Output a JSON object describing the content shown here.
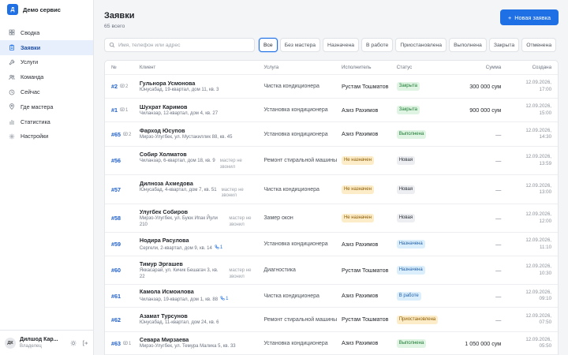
{
  "app": {
    "logo_letter": "Д",
    "name": "Демо сервис"
  },
  "nav": [
    {
      "label": "Сводка",
      "icon": "grid-icon"
    },
    {
      "label": "Заявки",
      "icon": "clipboard-icon",
      "active": true
    },
    {
      "label": "Услуги",
      "icon": "wrench-icon"
    },
    {
      "label": "Команда",
      "icon": "users-icon"
    },
    {
      "label": "Сейчас",
      "icon": "clock-icon"
    },
    {
      "label": "Где мастера",
      "icon": "pin-icon"
    },
    {
      "label": "Статистика",
      "icon": "chart-icon"
    },
    {
      "label": "Настройки",
      "icon": "gear-icon"
    }
  ],
  "user": {
    "initials": "ДК",
    "name": "Дилшод Кар...",
    "role": "Владелец"
  },
  "page": {
    "title": "Заявки",
    "subtitle": "65 всего",
    "new_button": "Новая заявка"
  },
  "search": {
    "placeholder": "Имя, телефон или адрес",
    "value": ""
  },
  "filters": [
    {
      "label": "Все",
      "active": true
    },
    {
      "label": "Без мастера"
    },
    {
      "label": "Назначена"
    },
    {
      "label": "В работе"
    },
    {
      "label": "Приостановлена"
    },
    {
      "label": "Выполнена"
    },
    {
      "label": "Закрыта"
    },
    {
      "label": "Отменена"
    }
  ],
  "columns": {
    "num": "№",
    "client": "Клиент",
    "service": "Услуга",
    "executor": "Исполнитель",
    "status": "Статус",
    "sum": "Сумма",
    "created": "Создана"
  },
  "rows": [
    {
      "num": "#2",
      "extra": "2",
      "extra_icon": "comment-icon",
      "client": "Гульнора Усмонова",
      "address": "Юнусабад, 19-квартал, дом 11, кв. 3",
      "nomaster": "",
      "calls": "",
      "service": "Чистка кондиционера",
      "executor": "Рустам Тошматов",
      "status": "Закрыта",
      "status_kind": "closed",
      "sum": "300 000 сум",
      "date": "12.09.2026,",
      "time": "17:00"
    },
    {
      "num": "#1",
      "extra": "1",
      "extra_icon": "comment-icon",
      "client": "Шухрат Каримов",
      "address": "Чиланзар, 12-квартал, дом 4, кв. 27",
      "nomaster": "",
      "calls": "",
      "service": "Установка кондиционера",
      "executor": "Азиз Рахимов",
      "status": "Закрыта",
      "status_kind": "closed",
      "sum": "900 000 сум",
      "date": "12.09.2026,",
      "time": "15:00"
    },
    {
      "num": "#65",
      "extra": "2",
      "extra_icon": "comment-icon",
      "client": "Фарход Юсупов",
      "address": "Мирзо-Улугбек, ул. Мустакиллик 88, кв. 45",
      "nomaster": "",
      "calls": "",
      "service": "Установка кондиционера",
      "executor": "Азиз Рахимов",
      "status": "Выполнена",
      "status_kind": "done",
      "sum": "—",
      "date": "12.09.2026,",
      "time": "14:30"
    },
    {
      "num": "#56",
      "extra": "",
      "extra_icon": "",
      "client": "Собир Холматов",
      "address": "Чиланзар, 6-квартал, дом 18, кв. 9",
      "nomaster": "мастер не звонил",
      "calls": "",
      "service": "Ремонт стиральной машины",
      "executor": "",
      "status": "Не назначен",
      "status_kind": "unassigned",
      "status2": "Новая",
      "sum": "—",
      "date": "12.09.2026,",
      "time": "13:59"
    },
    {
      "num": "#57",
      "extra": "",
      "extra_icon": "",
      "client": "Дилноза Ахмедова",
      "address": "Юнусабад, 4-квартал, дом 7, кв. 51",
      "nomaster": "мастер не звонил",
      "calls": "",
      "service": "Чистка кондиционера",
      "executor": "",
      "status": "Не назначен",
      "status_kind": "unassigned",
      "status2": "Новая",
      "sum": "—",
      "date": "12.09.2026,",
      "time": "13:00"
    },
    {
      "num": "#58",
      "extra": "",
      "extra_icon": "",
      "client": "Улугбек Собиров",
      "address": "Мирзо-Улугбек, ул. Буюк Ипак Йули 210",
      "nomaster": "мастер не звонил",
      "calls": "",
      "service": "Замер окон",
      "executor": "",
      "status": "Не назначен",
      "status_kind": "unassigned",
      "status2": "Новая",
      "sum": "—",
      "date": "12.09.2026,",
      "time": "12:00"
    },
    {
      "num": "#59",
      "extra": "",
      "extra_icon": "",
      "client": "Нодира Расулова",
      "address": "Сергели, 2-квартал, дом 9, кв. 14",
      "nomaster": "",
      "calls": "1",
      "service": "Установка кондиционера",
      "executor": "Азиз Рахимов",
      "status": "Назначена",
      "status_kind": "assigned",
      "sum": "—",
      "date": "12.09.2026,",
      "time": "11:10"
    },
    {
      "num": "#60",
      "extra": "",
      "extra_icon": "",
      "client": "Тимур Эргашев",
      "address": "Яккасарай, ул. Кичик Бешагач 3, кв. 22",
      "nomaster": "мастер не звонил",
      "calls": "",
      "service": "Диагностика",
      "executor": "Рустам Тошматов",
      "status": "Назначена",
      "status_kind": "assigned",
      "sum": "—",
      "date": "12.09.2026,",
      "time": "10:30"
    },
    {
      "num": "#61",
      "extra": "",
      "extra_icon": "",
      "client": "Камола Исмоилова",
      "address": "Чиланзар, 19-квартал, дом 1, кв. 88",
      "nomaster": "",
      "calls": "1",
      "service": "Чистка кондиционера",
      "executor": "Азиз Рахимов",
      "status": "В работе",
      "status_kind": "inwork",
      "sum": "—",
      "date": "12.09.2026,",
      "time": "09:10"
    },
    {
      "num": "#62",
      "extra": "",
      "extra_icon": "",
      "client": "Азамат Турсунов",
      "address": "Юнусабад, 11-квартал, дом 24, кв. 6",
      "nomaster": "",
      "calls": "",
      "service": "Ремонт стиральной машины",
      "executor": "Рустам Тошматов",
      "status": "Приостановлена",
      "status_kind": "paused",
      "sum": "—",
      "date": "12.09.2026,",
      "time": "07:50"
    },
    {
      "num": "#63",
      "extra": "1",
      "extra_icon": "comment-icon",
      "client": "Севара Мирзаева",
      "address": "Мирзо-Улугбек, ул. Темура Малика 5, кв. 33",
      "nomaster": "",
      "calls": "",
      "service": "Установка кондиционера",
      "executor": "Азиз Рахимов",
      "status": "Выполнена",
      "status_kind": "done",
      "sum": "1 050 000 сум",
      "date": "12.09.2026,",
      "time": "05:50"
    }
  ]
}
